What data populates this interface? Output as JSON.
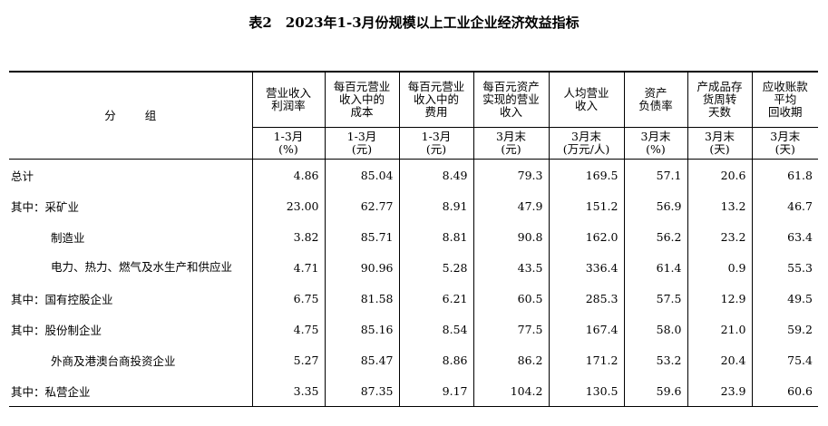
{
  "title": "表2　2023年1-3月份规模以上工业企业经济效益指标",
  "header": {
    "group_label": "分 组",
    "columns": [
      {
        "name": [
          "营业收入",
          "利润率"
        ],
        "unit": [
          "1-3月",
          "(%)"
        ]
      },
      {
        "name": [
          "每百元营业",
          "收入中的",
          "成本"
        ],
        "unit": [
          "1-3月",
          "(元)"
        ]
      },
      {
        "name": [
          "每百元营业",
          "收入中的",
          "费用"
        ],
        "unit": [
          "1-3月",
          "(元)"
        ]
      },
      {
        "name": [
          "每百元资产",
          "实现的营业",
          "收入"
        ],
        "unit": [
          "3月末",
          "(元)"
        ]
      },
      {
        "name": [
          "人均营业",
          "收入"
        ],
        "unit": [
          "3月末",
          "(万元/人)"
        ]
      },
      {
        "name": [
          "资产",
          "负债率"
        ],
        "unit": [
          "3月末",
          "(%)"
        ]
      },
      {
        "name": [
          "产成品存",
          "货周转",
          "天数"
        ],
        "unit": [
          "3月末",
          "(天)"
        ]
      },
      {
        "name": [
          "应收账款",
          "平均",
          "回收期"
        ],
        "unit": [
          "3月末",
          "(天)"
        ]
      }
    ]
  },
  "rows": [
    {
      "label": "总计",
      "values": [
        "4.86",
        "85.04",
        "8.49",
        "79.3",
        "169.5",
        "57.1",
        "20.6",
        "61.8"
      ]
    },
    {
      "label": "其中：采矿业",
      "values": [
        "23.00",
        "62.77",
        "8.91",
        "47.9",
        "151.2",
        "56.9",
        "13.2",
        "46.7"
      ]
    },
    {
      "label": "制造业",
      "values": [
        "3.82",
        "85.71",
        "8.81",
        "90.8",
        "162.0",
        "56.2",
        "23.2",
        "63.4"
      ]
    },
    {
      "label": "电力、热力、燃气及水生产和供应业",
      "values": [
        "4.71",
        "90.96",
        "5.28",
        "43.5",
        "336.4",
        "61.4",
        "0.9",
        "55.3"
      ]
    },
    {
      "label": "其中：国有控股企业",
      "values": [
        "6.75",
        "81.58",
        "6.21",
        "60.5",
        "285.3",
        "57.5",
        "12.9",
        "49.5"
      ]
    },
    {
      "label": "其中：股份制企业",
      "values": [
        "4.75",
        "85.16",
        "8.54",
        "77.5",
        "167.4",
        "58.0",
        "21.0",
        "59.2"
      ]
    },
    {
      "label": "外商及港澳台商投资企业",
      "values": [
        "5.27",
        "85.47",
        "8.86",
        "86.2",
        "171.2",
        "53.2",
        "20.4",
        "75.4"
      ]
    },
    {
      "label": "其中：私营企业",
      "values": [
        "3.35",
        "87.35",
        "9.17",
        "104.2",
        "130.5",
        "59.6",
        "23.9",
        "60.6"
      ]
    }
  ]
}
